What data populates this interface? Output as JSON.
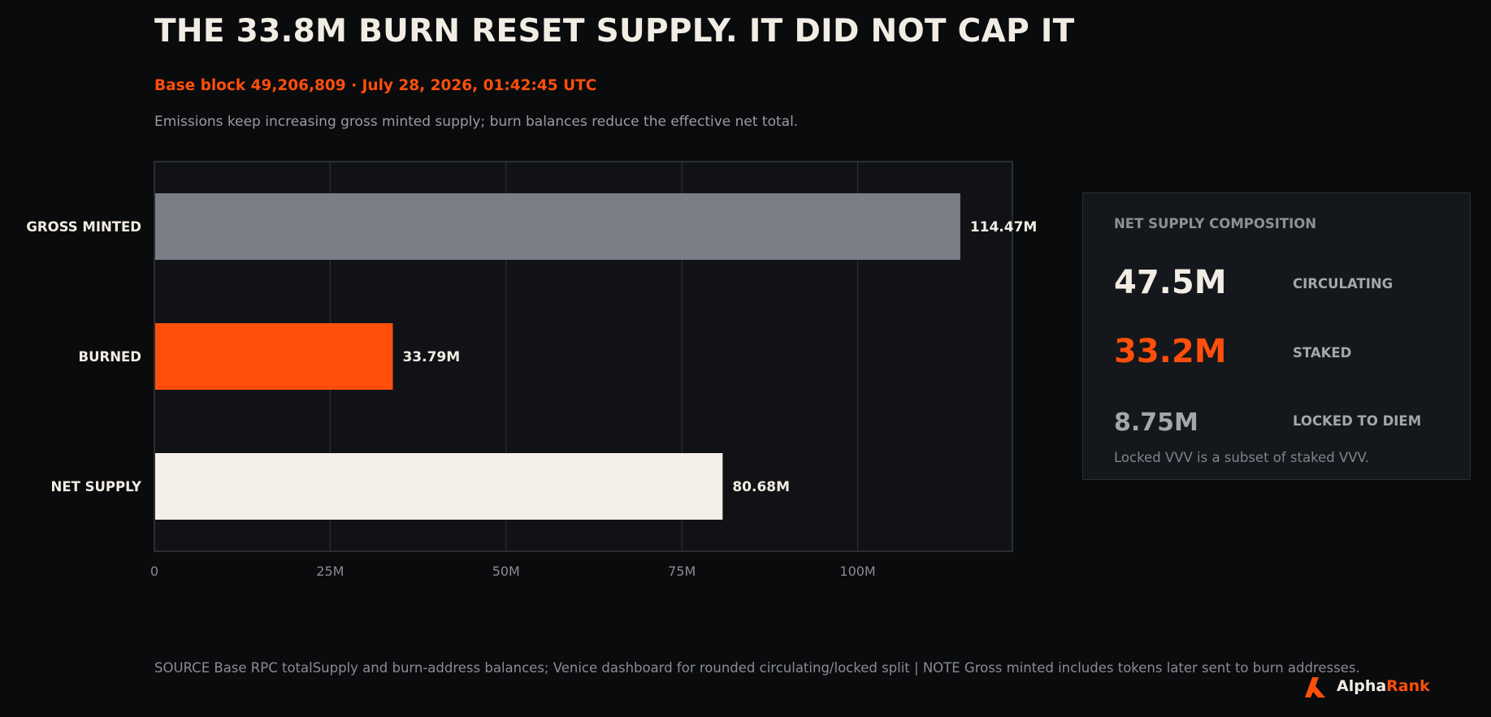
{
  "header": {
    "title": "THE 33.8M BURN RESET SUPPLY. IT DID NOT CAP IT",
    "subtitle": "Base block 49,206,809 · July 28, 2026, 01:42:45 UTC",
    "description": "Emissions keep increasing gross minted supply; burn balances reduce the effective net total."
  },
  "chart_data": {
    "type": "bar",
    "orientation": "horizontal",
    "categories": [
      "GROSS MINTED",
      "BURNED",
      "NET SUPPLY"
    ],
    "values": [
      114.47,
      33.79,
      80.68
    ],
    "value_labels": [
      "114.47M",
      "33.79M",
      "80.68M"
    ],
    "unit": "M",
    "bar_colors": [
      "#7a7e86",
      "#ff4f0a",
      "#f4efe8"
    ],
    "xlim": [
      0,
      122
    ],
    "xticks": [
      0,
      25,
      50,
      75,
      100
    ],
    "xtick_labels": [
      "0",
      "25M",
      "50M",
      "75M",
      "100M"
    ],
    "grid": true
  },
  "panel": {
    "title": "NET SUPPLY COMPOSITION",
    "metrics": [
      {
        "value": "47.5M",
        "label": "CIRCULATING",
        "color": "#f2ede4"
      },
      {
        "value": "33.2M",
        "label": "STAKED",
        "color": "#ff4f0a"
      },
      {
        "value": "8.75M",
        "label": "LOCKED TO DIEM",
        "color": "#a4a6aa"
      }
    ],
    "note": "Locked VVV is a subset of staked VVV."
  },
  "footer": {
    "text": "SOURCE  Base RPC totalSupply and burn-address balances; Venice dashboard for rounded circulating/locked split   |   NOTE  Gross minted includes tokens later sent to burn addresses."
  },
  "brand": {
    "part1": "Alpha",
    "part2": "Rank",
    "logo_icon": "alpharank-logo-icon",
    "accent": "#ff4f0a"
  }
}
